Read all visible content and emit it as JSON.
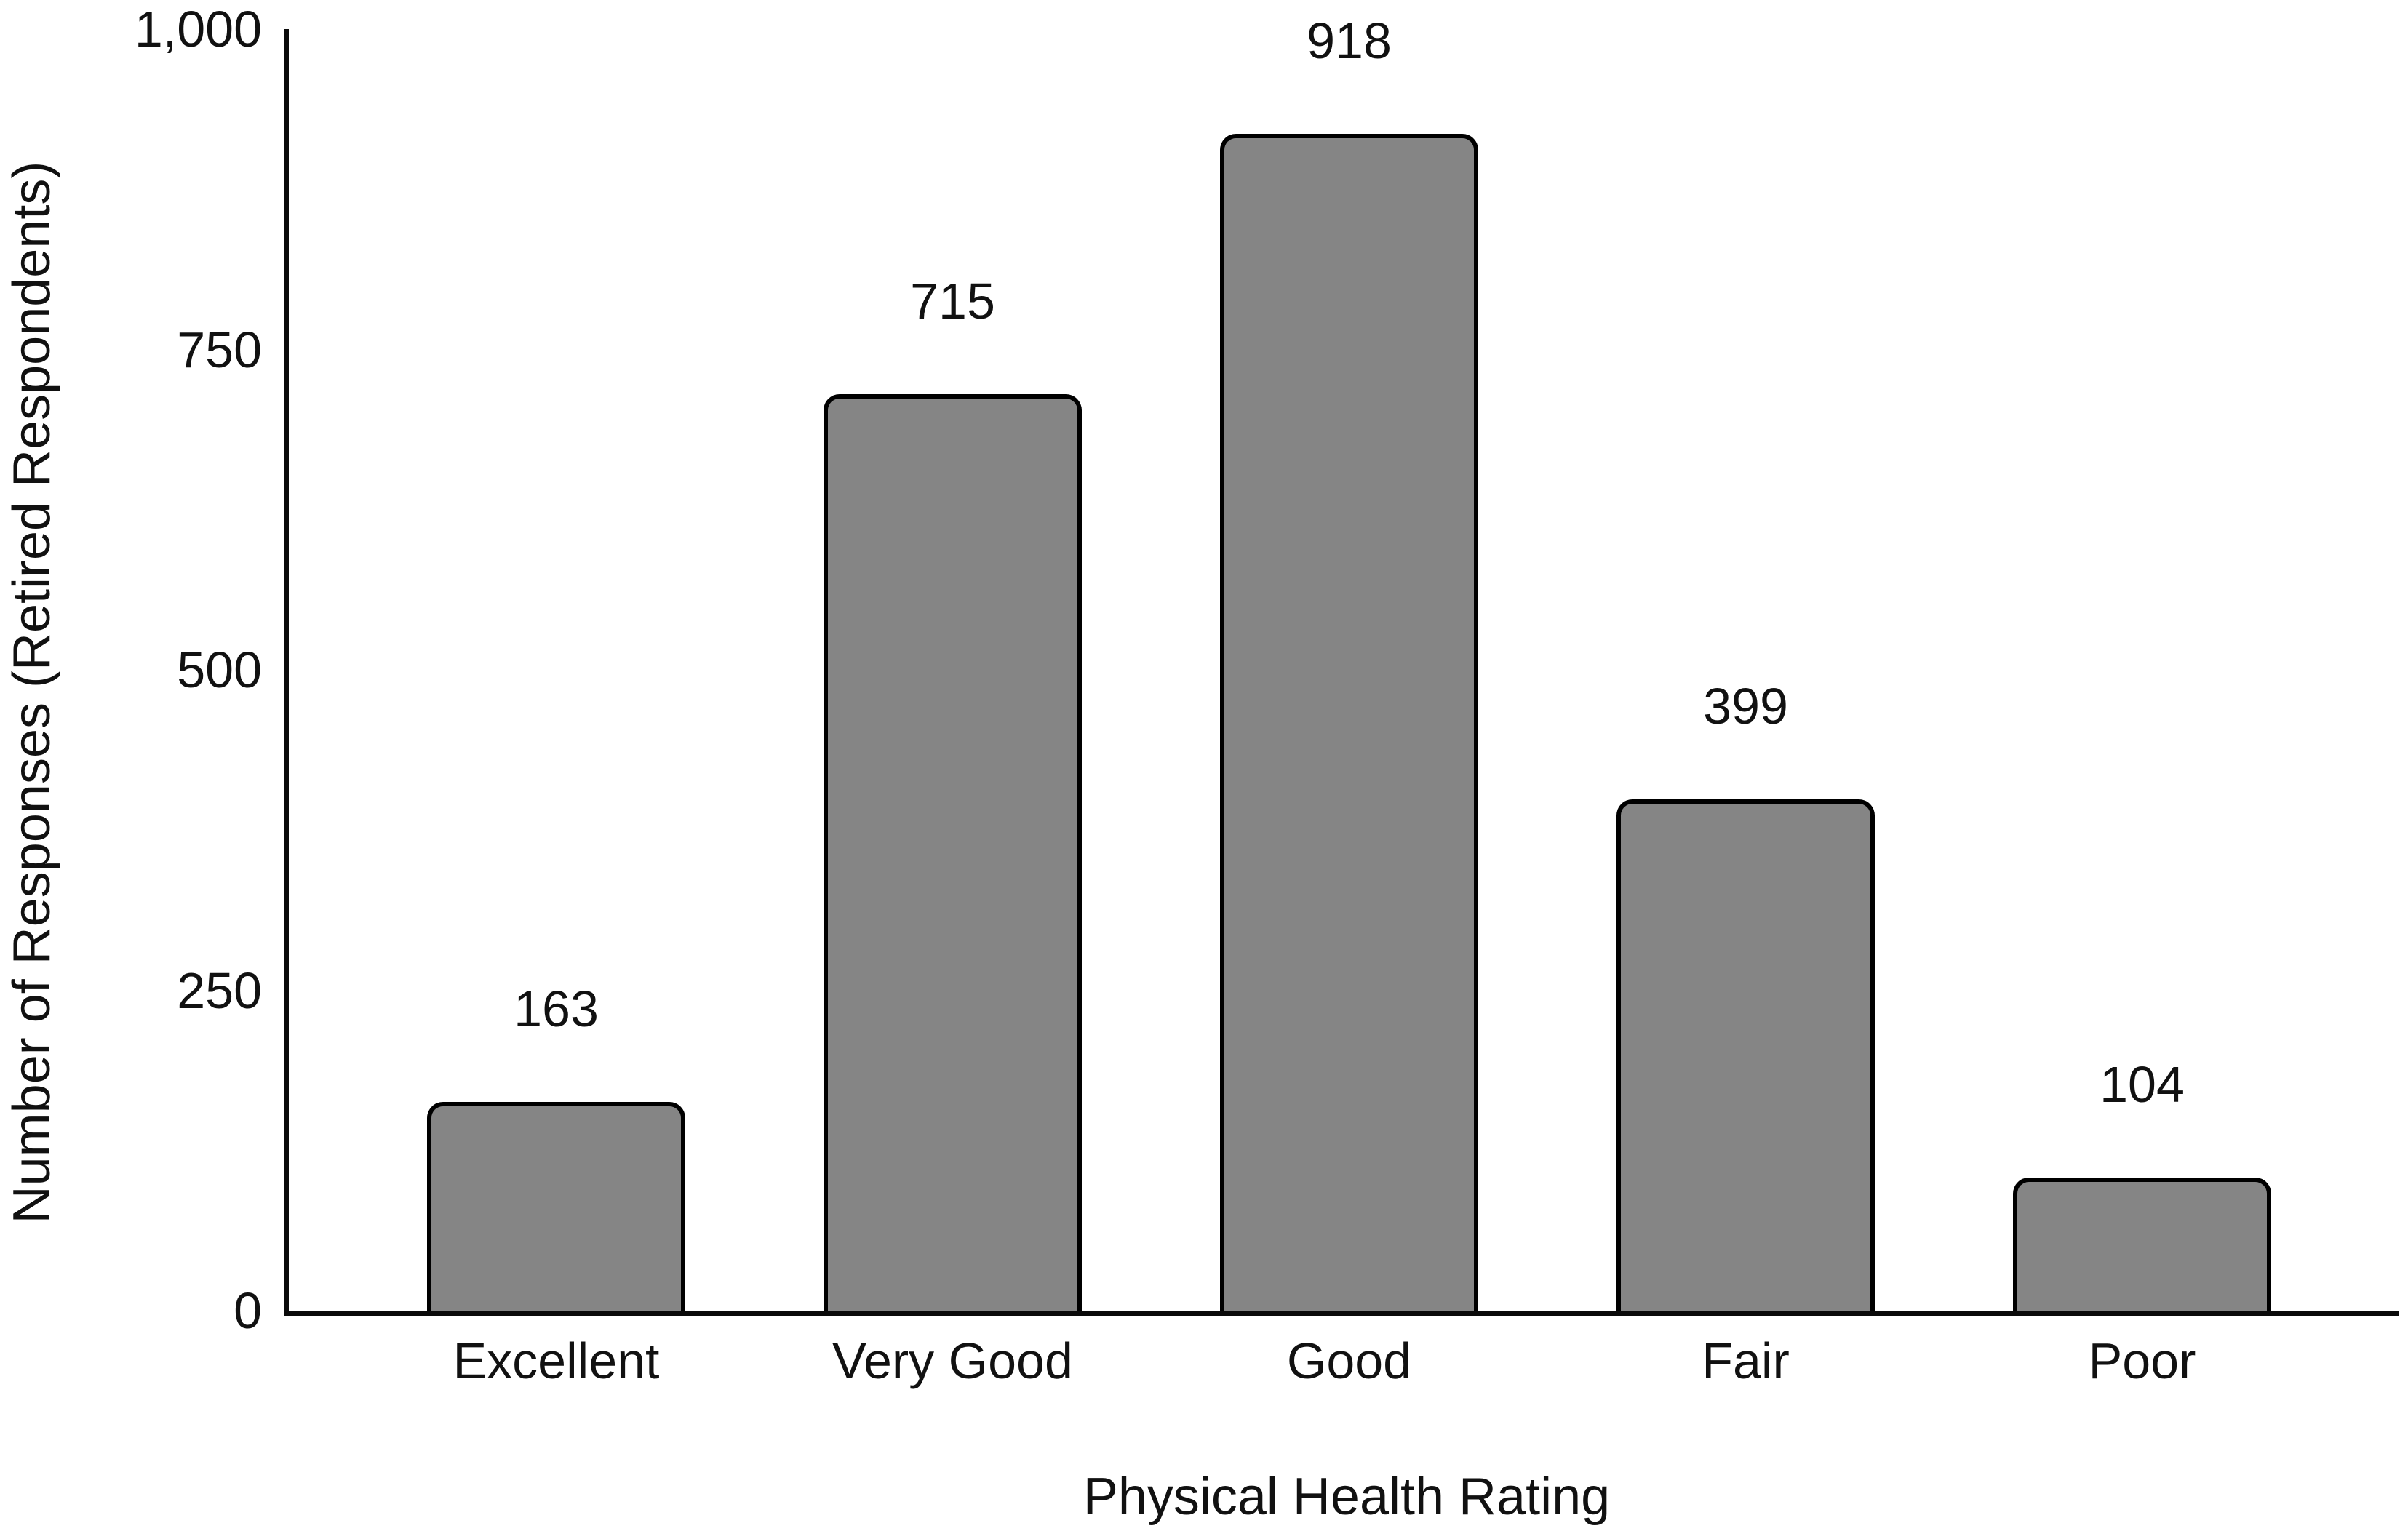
{
  "chart_data": {
    "type": "bar",
    "categories": [
      "Excellent",
      "Very Good",
      "Good",
      "Fair",
      "Poor"
    ],
    "values": [
      163,
      715,
      918,
      399,
      104
    ],
    "value_labels": [
      "163",
      "715",
      "918",
      "399",
      "104"
    ],
    "title": "",
    "xlabel": "Physical Health Rating",
    "ylabel": "Number of Responses (Retired Respondents)",
    "ylim": [
      0,
      1000
    ],
    "yticks": [
      0,
      250,
      500,
      750,
      1000
    ],
    "ytick_labels": [
      "0",
      "250",
      "500",
      "750",
      "1,000"
    ],
    "grid": false,
    "legend": false,
    "bar_color": "#858585",
    "bar_border_color": "#000000",
    "axis_color": "#0a0a0a",
    "text_color": "#111111"
  }
}
